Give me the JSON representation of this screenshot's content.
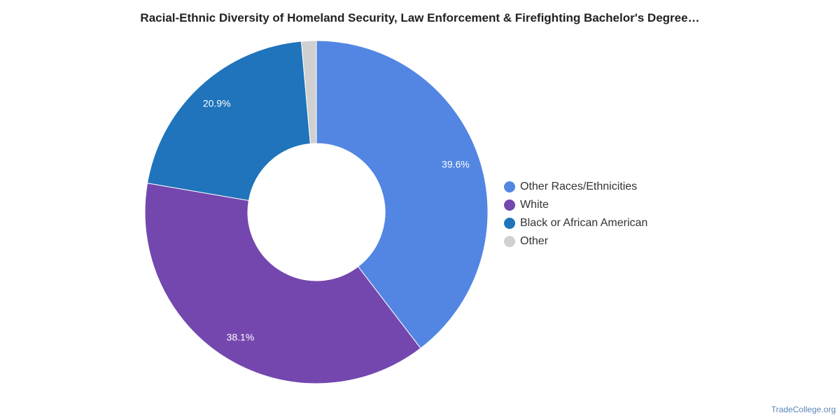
{
  "chart_data": {
    "type": "pie",
    "donut": true,
    "title": "Racial-Ethnic Diversity of Homeland Security, Law Enforcement & Firefighting Bachelor's Degree…",
    "legend_position": "right",
    "series": [
      {
        "name": "",
        "slices": [
          {
            "label": "Other Races/Ethnicities",
            "value": 39.6,
            "display": "39.6%",
            "color": "#5286e2"
          },
          {
            "label": "White",
            "value": 38.1,
            "display": "38.1%",
            "color": "#7447ae"
          },
          {
            "label": "Black or African American",
            "value": 20.9,
            "display": "20.9%",
            "color": "#1f74bb"
          },
          {
            "label": "Other",
            "value": 1.4,
            "display": "",
            "color": "#d0d0d0"
          }
        ]
      }
    ]
  },
  "footer": {
    "source": "TradeCollege.org"
  }
}
